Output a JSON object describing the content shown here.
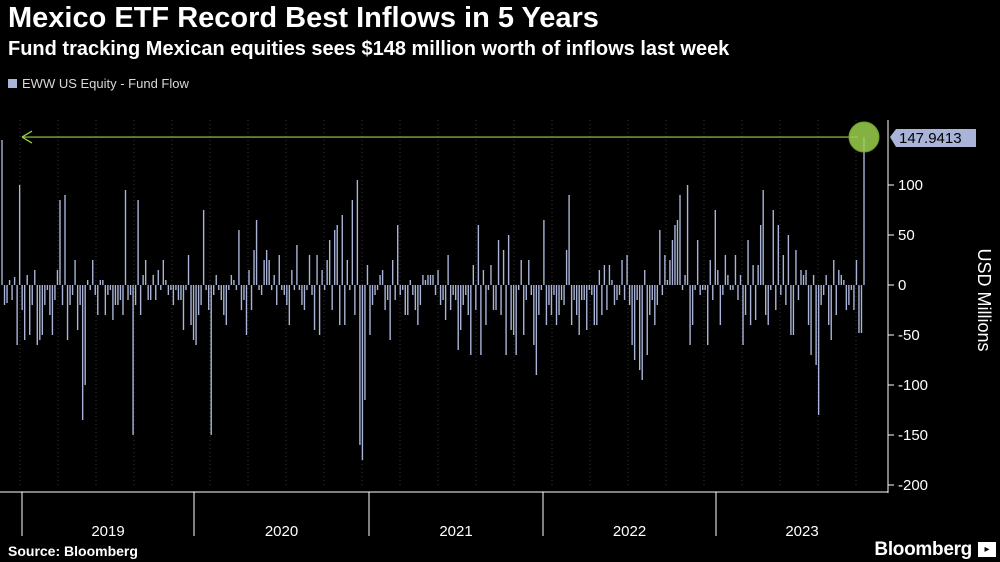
{
  "header": {
    "title": "Mexico ETF Record Best Inflows in 5 Years",
    "subtitle": "Fund tracking Mexican equities sees $148 million worth of inflows last week"
  },
  "footer": {
    "source": "Source: Bloomberg",
    "brand": "Bloomberg"
  },
  "colors": {
    "background": "#000000",
    "bar": "#a9b4d8",
    "highlight_line": "#9bd04c",
    "callout_bg": "#a9b4d8",
    "axis_text": "#ffffff",
    "grid": "#333333"
  },
  "chart_data": {
    "type": "bar",
    "ylabel": "USD Millions",
    "ylim": [
      -200,
      150
    ],
    "yticks": [
      100,
      50,
      0,
      -50,
      -100,
      -150,
      -200
    ],
    "xtick_labels": [
      "2019",
      "2020",
      "2021",
      "2022",
      "2023"
    ],
    "grid": true,
    "legend_position": "top-left",
    "series": [
      {
        "name": "EWW US Equity - Fund Flow",
        "x_start": "2018-12-24",
        "interval": "weekly",
        "values": [
          145,
          -20,
          -18,
          5,
          -15,
          8,
          -60,
          100,
          -25,
          -55,
          10,
          -50,
          -20,
          15,
          -60,
          -55,
          -50,
          -20,
          -5,
          -30,
          -50,
          -15,
          15,
          85,
          -20,
          90,
          -55,
          -20,
          -10,
          25,
          -45,
          -20,
          -135,
          -100,
          5,
          -5,
          25,
          -10,
          -30,
          5,
          5,
          -30,
          -10,
          -5,
          -35,
          -20,
          -20,
          -15,
          -30,
          95,
          -15,
          -10,
          -150,
          -20,
          85,
          -30,
          10,
          25,
          -15,
          -15,
          10,
          -15,
          15,
          -5,
          25,
          5,
          -10,
          -5,
          -20,
          -5,
          -15,
          -15,
          -45,
          -5,
          30,
          -40,
          -55,
          -60,
          -30,
          -20,
          75,
          -5,
          -25,
          -150,
          -10,
          10,
          -5,
          -15,
          -30,
          -40,
          -5,
          10,
          5,
          -5,
          55,
          -25,
          -15,
          -50,
          15,
          -25,
          35,
          65,
          -5,
          -10,
          25,
          35,
          25,
          -5,
          10,
          -20,
          30,
          -5,
          -10,
          -20,
          -40,
          15,
          -5,
          40,
          -5,
          -20,
          -25,
          -5,
          30,
          -10,
          -45,
          30,
          -50,
          15,
          -5,
          25,
          45,
          -25,
          55,
          60,
          -40,
          70,
          -40,
          25,
          -5,
          85,
          -30,
          105,
          -160,
          -175,
          -115,
          20,
          -50,
          -20,
          -10,
          -5,
          10,
          15,
          -25,
          -15,
          -55,
          25,
          -15,
          60,
          -10,
          -5,
          -30,
          -30,
          5,
          -10,
          -25,
          -40,
          -20,
          10,
          5,
          10,
          10,
          10,
          -10,
          15,
          -20,
          -15,
          -35,
          30,
          -25,
          -10,
          -15,
          -65,
          -45,
          -20,
          -10,
          -30,
          -70,
          20,
          -25,
          60,
          -70,
          15,
          -40,
          -5,
          20,
          -25,
          -25,
          45,
          -30,
          35,
          -70,
          50,
          -45,
          -50,
          -70,
          -5,
          25,
          -50,
          -15,
          25,
          -10,
          -60,
          -90,
          -30,
          -5,
          65,
          -40,
          -20,
          -30,
          -10,
          -40,
          -30,
          -15,
          -20,
          35,
          90,
          -40,
          -15,
          -30,
          -50,
          -15,
          -15,
          -45,
          -5,
          -10,
          -40,
          -40,
          15,
          -30,
          20,
          -25,
          20,
          5,
          -20,
          -15,
          -10,
          25,
          -15,
          30,
          -20,
          -60,
          -75,
          -15,
          -85,
          -95,
          15,
          -70,
          -30,
          -15,
          -40,
          -20,
          55,
          -10,
          30,
          5,
          25,
          45,
          60,
          65,
          90,
          -5,
          10,
          100,
          -60,
          -40,
          -5,
          45,
          -10,
          -5,
          -5,
          -60,
          25,
          -15,
          75,
          15,
          -40,
          -10,
          30,
          10,
          -5,
          -5,
          30,
          -15,
          10,
          -60,
          -30,
          45,
          -40,
          20,
          -35,
          20,
          60,
          95,
          -30,
          -40,
          -5,
          75,
          -25,
          60,
          -10,
          30,
          -20,
          50,
          -50,
          -50,
          35,
          -15,
          15,
          10,
          15,
          -40,
          -70,
          10,
          -80,
          -130,
          -20,
          -10,
          10,
          -40,
          -55,
          25,
          -30,
          15,
          10,
          5,
          -25,
          -20,
          -5,
          -25,
          25,
          -48,
          -48,
          148
        ]
      }
    ],
    "annotations": [
      {
        "type": "last_value_callout",
        "label": "147.9413",
        "value": 147.9413
      }
    ]
  }
}
